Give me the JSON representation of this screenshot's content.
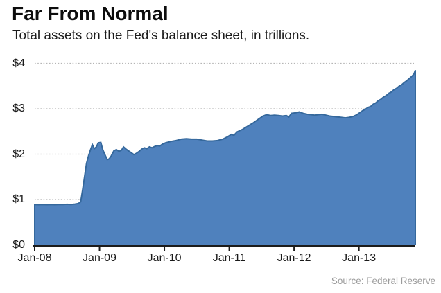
{
  "header": {
    "title": "Far From Normal",
    "subtitle": "Total assets on the Fed's balance sheet, in trillions."
  },
  "footer": {
    "source": "Source: Federal Reserve"
  },
  "colors": {
    "background": "#ffffff",
    "area_fill": "#4f81bd",
    "area_line": "#35689c",
    "axis": "#1c1c1c",
    "grid": "#b5b5b5",
    "label_text": "#1a1a1a",
    "source_text": "#9c9c9c"
  },
  "chart_data": {
    "type": "area",
    "title": "Far From Normal",
    "subtitle": "Total assets on the Fed's balance sheet, in trillions.",
    "unit": "trillions of U.S. dollars",
    "legend": "none",
    "grid": "horizontal dotted lines at each $1 step",
    "source": "Source: Federal Reserve",
    "x_axis": {
      "range": [
        2008.0,
        2013.87
      ],
      "ticks": [
        {
          "label": "Jan-08",
          "t": 2008.0
        },
        {
          "label": "Jan-09",
          "t": 2009.0
        },
        {
          "label": "Jan-10",
          "t": 2010.0
        },
        {
          "label": "Jan-11",
          "t": 2011.0
        },
        {
          "label": "Jan-12",
          "t": 2012.0
        },
        {
          "label": "Jan-13",
          "t": 2013.0
        }
      ]
    },
    "y_axis": {
      "range": [
        0,
        4
      ],
      "ticks": [
        {
          "label": "$0",
          "value": 0
        },
        {
          "label": "$1",
          "value": 1
        },
        {
          "label": "$2",
          "value": 2
        },
        {
          "label": "$3",
          "value": 3
        },
        {
          "label": "$4",
          "value": 4
        }
      ]
    },
    "series": [
      {
        "name": "Fed total assets",
        "points": [
          [
            2008.0,
            0.89
          ],
          [
            2008.06,
            0.885
          ],
          [
            2008.12,
            0.89
          ],
          [
            2008.19,
            0.885
          ],
          [
            2008.25,
            0.89
          ],
          [
            2008.31,
            0.885
          ],
          [
            2008.37,
            0.89
          ],
          [
            2008.44,
            0.89
          ],
          [
            2008.5,
            0.895
          ],
          [
            2008.56,
            0.89
          ],
          [
            2008.62,
            0.9
          ],
          [
            2008.67,
            0.91
          ],
          [
            2008.71,
            0.95
          ],
          [
            2008.74,
            1.22
          ],
          [
            2008.77,
            1.51
          ],
          [
            2008.8,
            1.8
          ],
          [
            2008.83,
            1.96
          ],
          [
            2008.86,
            2.09
          ],
          [
            2008.89,
            2.21
          ],
          [
            2008.92,
            2.12
          ],
          [
            2008.95,
            2.16
          ],
          [
            2008.98,
            2.25
          ],
          [
            2009.02,
            2.26
          ],
          [
            2009.05,
            2.1
          ],
          [
            2009.08,
            2.0
          ],
          [
            2009.12,
            1.88
          ],
          [
            2009.15,
            1.9
          ],
          [
            2009.18,
            1.96
          ],
          [
            2009.22,
            2.07
          ],
          [
            2009.26,
            2.1
          ],
          [
            2009.3,
            2.06
          ],
          [
            2009.34,
            2.09
          ],
          [
            2009.37,
            2.16
          ],
          [
            2009.41,
            2.11
          ],
          [
            2009.45,
            2.07
          ],
          [
            2009.49,
            2.03
          ],
          [
            2009.53,
            1.99
          ],
          [
            2009.57,
            2.02
          ],
          [
            2009.61,
            2.06
          ],
          [
            2009.65,
            2.11
          ],
          [
            2009.69,
            2.14
          ],
          [
            2009.73,
            2.12
          ],
          [
            2009.77,
            2.16
          ],
          [
            2009.81,
            2.14
          ],
          [
            2009.85,
            2.17
          ],
          [
            2009.89,
            2.19
          ],
          [
            2009.93,
            2.18
          ],
          [
            2009.97,
            2.22
          ],
          [
            2010.02,
            2.25
          ],
          [
            2010.1,
            2.28
          ],
          [
            2010.18,
            2.3
          ],
          [
            2010.26,
            2.33
          ],
          [
            2010.34,
            2.34
          ],
          [
            2010.42,
            2.33
          ],
          [
            2010.5,
            2.33
          ],
          [
            2010.58,
            2.31
          ],
          [
            2010.66,
            2.29
          ],
          [
            2010.74,
            2.29
          ],
          [
            2010.82,
            2.3
          ],
          [
            2010.9,
            2.33
          ],
          [
            2010.97,
            2.38
          ],
          [
            2011.04,
            2.44
          ],
          [
            2011.07,
            2.41
          ],
          [
            2011.12,
            2.49
          ],
          [
            2011.21,
            2.55
          ],
          [
            2011.29,
            2.62
          ],
          [
            2011.37,
            2.69
          ],
          [
            2011.45,
            2.77
          ],
          [
            2011.52,
            2.84
          ],
          [
            2011.58,
            2.87
          ],
          [
            2011.64,
            2.85
          ],
          [
            2011.7,
            2.86
          ],
          [
            2011.76,
            2.85
          ],
          [
            2011.82,
            2.84
          ],
          [
            2011.88,
            2.85
          ],
          [
            2011.92,
            2.82
          ],
          [
            2011.96,
            2.9
          ],
          [
            2012.02,
            2.91
          ],
          [
            2012.08,
            2.93
          ],
          [
            2012.14,
            2.9
          ],
          [
            2012.2,
            2.88
          ],
          [
            2012.26,
            2.87
          ],
          [
            2012.32,
            2.86
          ],
          [
            2012.38,
            2.87
          ],
          [
            2012.43,
            2.88
          ],
          [
            2012.49,
            2.86
          ],
          [
            2012.55,
            2.84
          ],
          [
            2012.61,
            2.83
          ],
          [
            2012.67,
            2.82
          ],
          [
            2012.73,
            2.81
          ],
          [
            2012.79,
            2.8
          ],
          [
            2012.85,
            2.81
          ],
          [
            2012.91,
            2.83
          ],
          [
            2012.97,
            2.87
          ],
          [
            2013.02,
            2.92
          ],
          [
            2013.06,
            2.96
          ],
          [
            2013.1,
            2.99
          ],
          [
            2013.14,
            3.03
          ],
          [
            2013.18,
            3.05
          ],
          [
            2013.22,
            3.1
          ],
          [
            2013.26,
            3.13
          ],
          [
            2013.3,
            3.18
          ],
          [
            2013.34,
            3.21
          ],
          [
            2013.38,
            3.26
          ],
          [
            2013.42,
            3.29
          ],
          [
            2013.46,
            3.34
          ],
          [
            2013.5,
            3.37
          ],
          [
            2013.54,
            3.42
          ],
          [
            2013.58,
            3.45
          ],
          [
            2013.62,
            3.5
          ],
          [
            2013.66,
            3.53
          ],
          [
            2013.7,
            3.58
          ],
          [
            2013.74,
            3.62
          ],
          [
            2013.78,
            3.67
          ],
          [
            2013.82,
            3.72
          ],
          [
            2013.85,
            3.77
          ],
          [
            2013.87,
            3.85
          ]
        ]
      }
    ]
  }
}
